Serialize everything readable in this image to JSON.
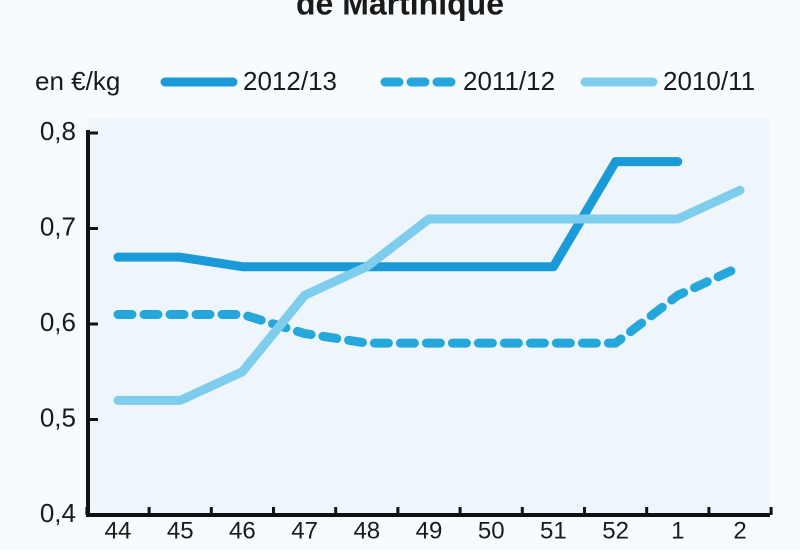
{
  "chart_data": {
    "type": "line",
    "title": "de Martinique",
    "ylabel": "en €/kg",
    "categories": [
      "44",
      "45",
      "46",
      "47",
      "48",
      "49",
      "50",
      "51",
      "52",
      "1",
      "2"
    ],
    "series": [
      {
        "name": "2012/13",
        "color": "#1a9ad6",
        "style": "solid",
        "values": [
          0.67,
          0.67,
          0.66,
          0.66,
          0.66,
          0.66,
          0.66,
          0.66,
          0.77,
          0.77,
          null
        ]
      },
      {
        "name": "2011/12",
        "color": "#26a7dc",
        "style": "dashed",
        "values": [
          0.61,
          0.61,
          0.61,
          0.59,
          0.58,
          0.58,
          0.58,
          0.58,
          0.58,
          0.63,
          0.66
        ]
      },
      {
        "name": "2010/11",
        "color": "#7fcdec",
        "style": "solid",
        "values": [
          0.52,
          0.52,
          0.55,
          0.63,
          0.66,
          0.71,
          0.71,
          0.71,
          0.71,
          0.71,
          0.74
        ]
      }
    ],
    "ylim": [
      0.4,
      0.8
    ],
    "yticks": [
      {
        "value": 0.4,
        "label": "0,4"
      },
      {
        "value": 0.5,
        "label": "0,5"
      },
      {
        "value": 0.6,
        "label": "0,6"
      },
      {
        "value": 0.7,
        "label": "0,7"
      },
      {
        "value": 0.8,
        "label": "0,8"
      }
    ],
    "legend": "top"
  }
}
